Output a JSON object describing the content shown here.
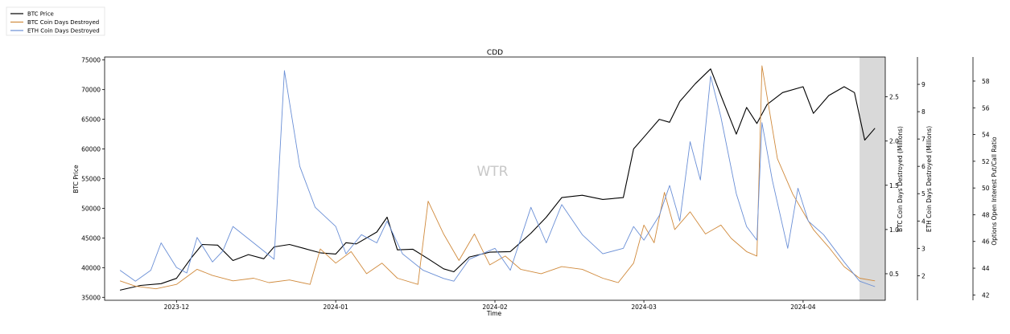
{
  "chart_data": {
    "type": "line",
    "title": "CDD",
    "xlabel": "Time",
    "watermark": "WTR",
    "x_ticks": [
      "2023-12",
      "2024-01",
      "2024-02",
      "2024-03",
      "2024-04"
    ],
    "x_range": [
      "2023-11-17",
      "2024-04-17"
    ],
    "highlight_span": [
      "2024-04-12",
      "2024-04-17"
    ],
    "legend": {
      "position": "top-left outside",
      "entries": [
        {
          "label": "BTC Price",
          "color": "#000000"
        },
        {
          "label": "BTC Coin Days Destroyed",
          "color": "#d08a3c"
        },
        {
          "label": "ETH Coin Days Destroyed",
          "color": "#6a8fd6"
        }
      ]
    },
    "axes": {
      "left": {
        "label": "BTC Price",
        "range": [
          34500,
          75500
        ],
        "ticks": [
          35000,
          40000,
          45000,
          50000,
          55000,
          60000,
          65000,
          70000,
          75000
        ]
      },
      "right1": {
        "label": "BTC Coin Days Destroyed (Millions)",
        "range": [
          0.2,
          2.95
        ],
        "ticks": [
          "0.5",
          "1.0",
          "1.5",
          "2.0",
          "2.5"
        ]
      },
      "right2": {
        "label": "ETH Coin Days Destroyed (Millions)",
        "range": [
          1.1,
          10.0
        ],
        "ticks": [
          "2",
          "3",
          "4",
          "5",
          "6",
          "7",
          "8",
          "9"
        ]
      },
      "right3": {
        "label": "Options Open Interest Put/Call Ratio",
        "range": [
          41.6,
          59.8
        ],
        "ticks": [
          "42",
          "44",
          "46",
          "48",
          "50",
          "52",
          "54",
          "56",
          "58"
        ]
      }
    },
    "series": [
      {
        "name": "BTC Price",
        "axis": "left",
        "color": "#000000",
        "points": [
          [
            "2023-11-20",
            36200
          ],
          [
            "2023-11-24",
            37000
          ],
          [
            "2023-11-28",
            37300
          ],
          [
            "2023-12-01",
            38200
          ],
          [
            "2023-12-04",
            41800
          ],
          [
            "2023-12-06",
            43900
          ],
          [
            "2023-12-09",
            43800
          ],
          [
            "2023-12-12",
            41200
          ],
          [
            "2023-12-15",
            42200
          ],
          [
            "2023-12-18",
            41500
          ],
          [
            "2023-12-20",
            43500
          ],
          [
            "2023-12-23",
            43900
          ],
          [
            "2023-12-26",
            43200
          ],
          [
            "2023-12-29",
            42500
          ],
          [
            "2024-01-01",
            42300
          ],
          [
            "2024-01-03",
            44200
          ],
          [
            "2024-01-05",
            44000
          ],
          [
            "2024-01-09",
            46000
          ],
          [
            "2024-01-11",
            48500
          ],
          [
            "2024-01-13",
            43000
          ],
          [
            "2024-01-16",
            43100
          ],
          [
            "2024-01-19",
            41500
          ],
          [
            "2024-01-22",
            39800
          ],
          [
            "2024-01-24",
            39300
          ],
          [
            "2024-01-27",
            41800
          ],
          [
            "2024-01-31",
            42600
          ],
          [
            "2024-02-04",
            42700
          ],
          [
            "2024-02-08",
            45800
          ],
          [
            "2024-02-11",
            48500
          ],
          [
            "2024-02-14",
            51800
          ],
          [
            "2024-02-18",
            52200
          ],
          [
            "2024-02-22",
            51500
          ],
          [
            "2024-02-26",
            51800
          ],
          [
            "2024-02-28",
            60000
          ],
          [
            "2024-03-01",
            62000
          ],
          [
            "2024-03-04",
            65000
          ],
          [
            "2024-03-06",
            64500
          ],
          [
            "2024-03-08",
            68000
          ],
          [
            "2024-03-11",
            71000
          ],
          [
            "2024-03-14",
            73500
          ],
          [
            "2024-03-16",
            69000
          ],
          [
            "2024-03-19",
            62500
          ],
          [
            "2024-03-21",
            67000
          ],
          [
            "2024-03-23",
            64300
          ],
          [
            "2024-03-25",
            67500
          ],
          [
            "2024-03-28",
            69500
          ],
          [
            "2024-04-01",
            70500
          ],
          [
            "2024-04-03",
            66000
          ],
          [
            "2024-04-06",
            69000
          ],
          [
            "2024-04-09",
            70500
          ],
          [
            "2024-04-11",
            69500
          ],
          [
            "2024-04-13",
            61500
          ],
          [
            "2024-04-15",
            63500
          ]
        ]
      },
      {
        "name": "BTC Coin Days Destroyed",
        "axis": "right1",
        "color": "#d08a3c",
        "points": [
          [
            "2023-11-20",
            0.42
          ],
          [
            "2023-11-23",
            0.36
          ],
          [
            "2023-11-27",
            0.33
          ],
          [
            "2023-12-01",
            0.38
          ],
          [
            "2023-12-05",
            0.55
          ],
          [
            "2023-12-08",
            0.48
          ],
          [
            "2023-12-12",
            0.42
          ],
          [
            "2023-12-16",
            0.45
          ],
          [
            "2023-12-19",
            0.4
          ],
          [
            "2023-12-23",
            0.43
          ],
          [
            "2023-12-27",
            0.38
          ],
          [
            "2023-12-29",
            0.78
          ],
          [
            "2024-01-01",
            0.62
          ],
          [
            "2024-01-04",
            0.75
          ],
          [
            "2024-01-07",
            0.5
          ],
          [
            "2024-01-10",
            0.62
          ],
          [
            "2024-01-13",
            0.45
          ],
          [
            "2024-01-17",
            0.38
          ],
          [
            "2024-01-19",
            1.32
          ],
          [
            "2024-01-22",
            0.95
          ],
          [
            "2024-01-25",
            0.65
          ],
          [
            "2024-01-28",
            0.95
          ],
          [
            "2024-01-31",
            0.6
          ],
          [
            "2024-02-03",
            0.7
          ],
          [
            "2024-02-06",
            0.55
          ],
          [
            "2024-02-10",
            0.5
          ],
          [
            "2024-02-14",
            0.58
          ],
          [
            "2024-02-18",
            0.55
          ],
          [
            "2024-02-22",
            0.45
          ],
          [
            "2024-02-25",
            0.4
          ],
          [
            "2024-02-28",
            0.62
          ],
          [
            "2024-03-01",
            1.05
          ],
          [
            "2024-03-03",
            0.85
          ],
          [
            "2024-03-05",
            1.42
          ],
          [
            "2024-03-07",
            1.0
          ],
          [
            "2024-03-10",
            1.2
          ],
          [
            "2024-03-13",
            0.95
          ],
          [
            "2024-03-16",
            1.05
          ],
          [
            "2024-03-18",
            0.9
          ],
          [
            "2024-03-21",
            0.75
          ],
          [
            "2024-03-23",
            0.7
          ],
          [
            "2024-03-24",
            2.85
          ],
          [
            "2024-03-27",
            1.8
          ],
          [
            "2024-03-30",
            1.4
          ],
          [
            "2024-04-03",
            1.0
          ],
          [
            "2024-04-06",
            0.8
          ],
          [
            "2024-04-09",
            0.58
          ],
          [
            "2024-04-12",
            0.45
          ],
          [
            "2024-04-15",
            0.42
          ]
        ]
      },
      {
        "name": "ETH Coin Days Destroyed",
        "axis": "right2",
        "color": "#6a8fd6",
        "points": [
          [
            "2023-11-20",
            2.2
          ],
          [
            "2023-11-23",
            1.8
          ],
          [
            "2023-11-26",
            2.2
          ],
          [
            "2023-11-28",
            3.2
          ],
          [
            "2023-12-01",
            2.3
          ],
          [
            "2023-12-03",
            2.1
          ],
          [
            "2023-12-05",
            3.4
          ],
          [
            "2023-12-08",
            2.5
          ],
          [
            "2023-12-10",
            2.9
          ],
          [
            "2023-12-12",
            3.8
          ],
          [
            "2023-12-16",
            3.2
          ],
          [
            "2023-12-20",
            2.6
          ],
          [
            "2023-12-22",
            9.5
          ],
          [
            "2023-12-25",
            6.0
          ],
          [
            "2023-12-28",
            4.5
          ],
          [
            "2024-01-01",
            3.8
          ],
          [
            "2024-01-03",
            2.8
          ],
          [
            "2024-01-06",
            3.5
          ],
          [
            "2024-01-09",
            3.2
          ],
          [
            "2024-01-11",
            4.0
          ],
          [
            "2024-01-14",
            2.8
          ],
          [
            "2024-01-18",
            2.2
          ],
          [
            "2024-01-22",
            1.9
          ],
          [
            "2024-01-24",
            1.8
          ],
          [
            "2024-01-27",
            2.6
          ],
          [
            "2024-02-01",
            3.0
          ],
          [
            "2024-02-04",
            2.2
          ],
          [
            "2024-02-08",
            4.5
          ],
          [
            "2024-02-11",
            3.2
          ],
          [
            "2024-02-14",
            4.6
          ],
          [
            "2024-02-18",
            3.5
          ],
          [
            "2024-02-22",
            2.8
          ],
          [
            "2024-02-26",
            3.0
          ],
          [
            "2024-02-28",
            3.8
          ],
          [
            "2024-03-01",
            3.3
          ],
          [
            "2024-03-04",
            4.2
          ],
          [
            "2024-03-06",
            5.3
          ],
          [
            "2024-03-08",
            4.0
          ],
          [
            "2024-03-10",
            6.9
          ],
          [
            "2024-03-12",
            5.5
          ],
          [
            "2024-03-14",
            9.3
          ],
          [
            "2024-03-16",
            7.8
          ],
          [
            "2024-03-19",
            5.0
          ],
          [
            "2024-03-21",
            3.8
          ],
          [
            "2024-03-23",
            3.3
          ],
          [
            "2024-03-24",
            7.6
          ],
          [
            "2024-03-26",
            5.5
          ],
          [
            "2024-03-29",
            3.0
          ],
          [
            "2024-03-31",
            5.2
          ],
          [
            "2024-04-02",
            4.0
          ],
          [
            "2024-04-05",
            3.5
          ],
          [
            "2024-04-09",
            2.5
          ],
          [
            "2024-04-12",
            1.8
          ],
          [
            "2024-04-15",
            1.6
          ]
        ]
      }
    ]
  }
}
